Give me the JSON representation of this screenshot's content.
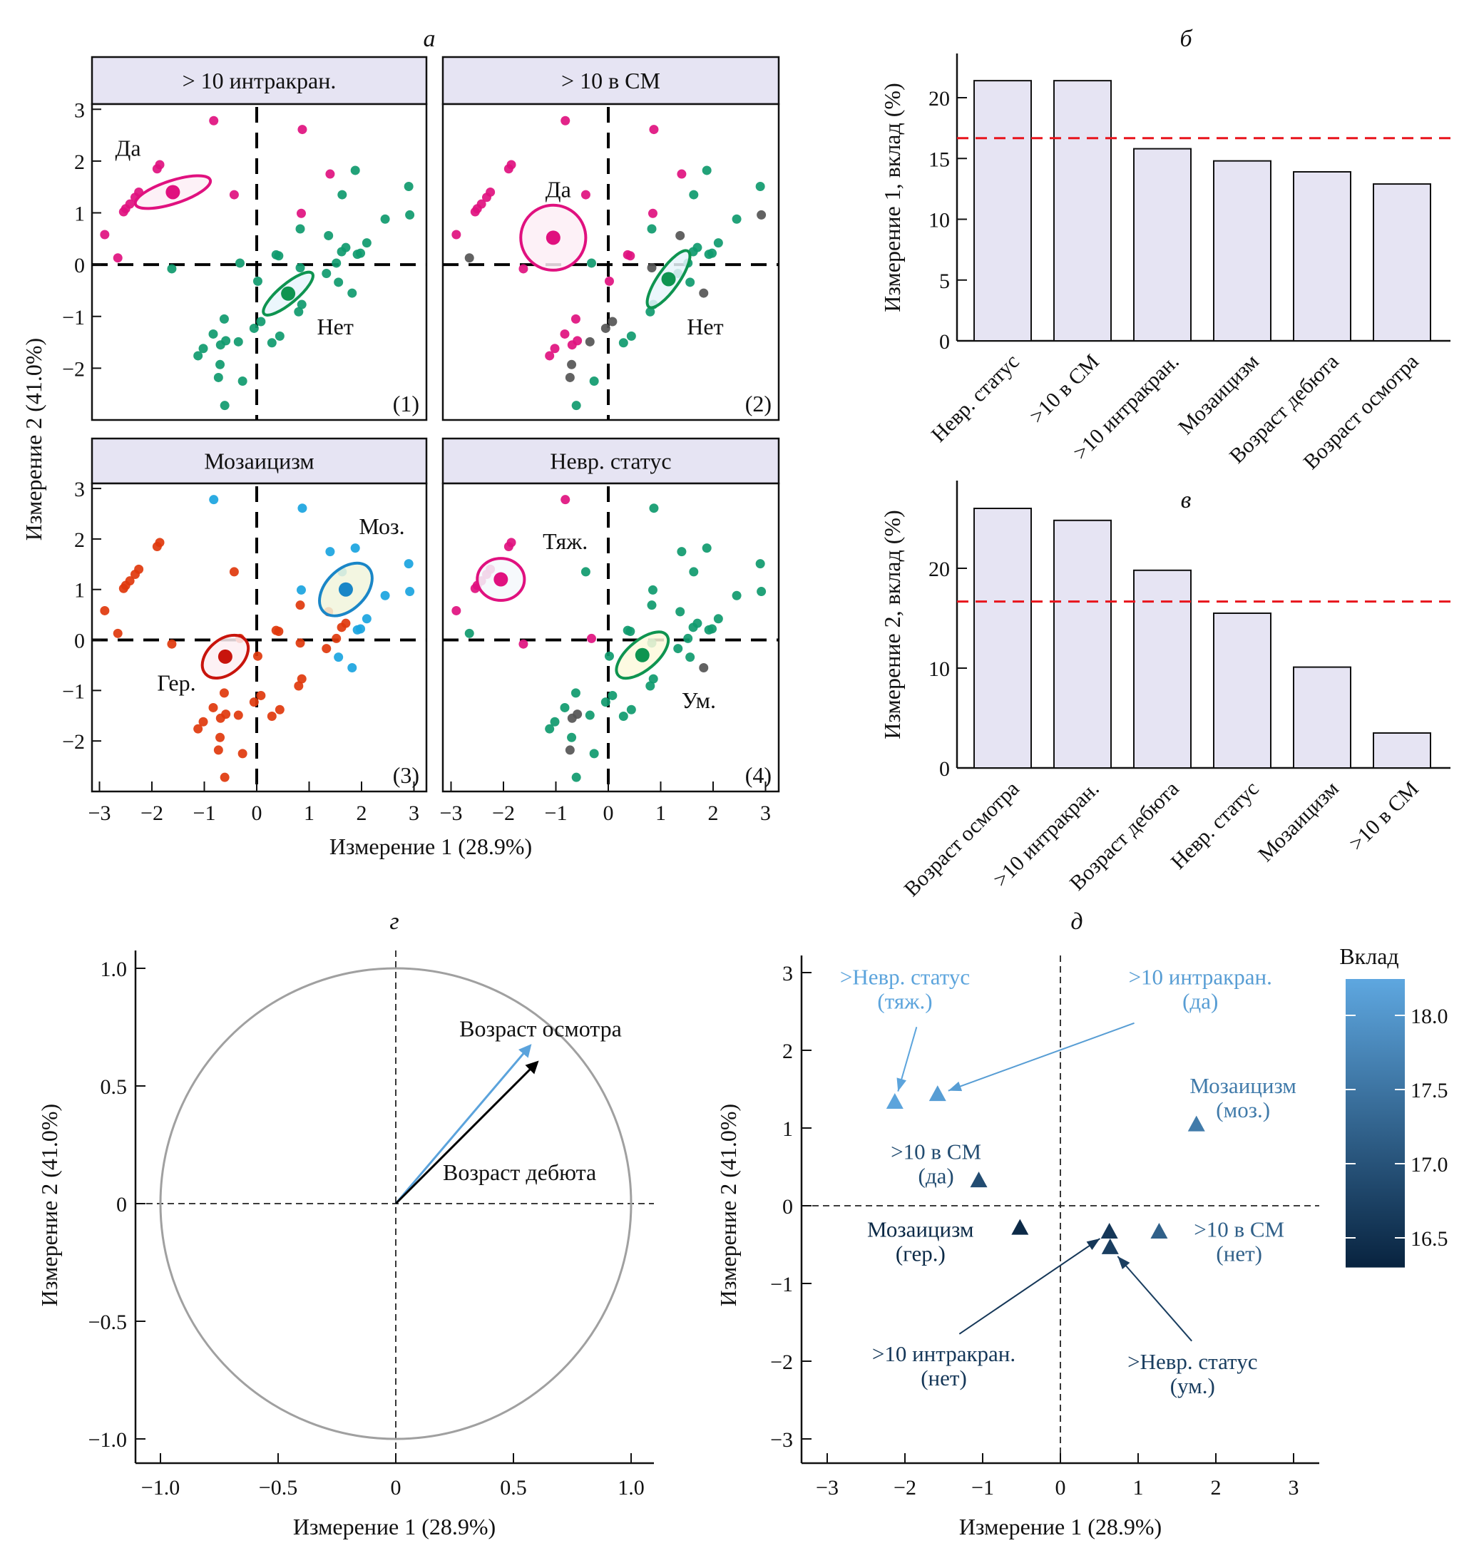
{
  "figure": {
    "panel_letters": {
      "a": "а",
      "b": "б",
      "v": "в",
      "g": "г",
      "d": "д"
    }
  },
  "chart_data": [
    {
      "id": "a",
      "type": "scatter",
      "title": "а",
      "xlabel": "Измерение 1 (28.9%)",
      "ylabel": "Измерение 2 (41.0%)",
      "xlim": [
        -3.2,
        3.2
      ],
      "ylim": [
        -3.0,
        3.1
      ],
      "xticks": [
        -3,
        -2,
        -1,
        0,
        1,
        2,
        3
      ],
      "yticks": [
        -2,
        -1,
        0,
        1,
        2,
        3
      ],
      "tick_labels_x": [
        "−3",
        "−2",
        "−1",
        "0",
        "1",
        "2",
        "3"
      ],
      "tick_labels_y": [
        "−2",
        "−1",
        "0",
        "1",
        "2",
        "3"
      ],
      "colors": {
        "da": "#e0117f",
        "net": "#0f9a6e",
        "na": "#555555",
        "moz": "#1aa4e0",
        "ger": "#e0380c",
        "tyazh": "#e0117f",
        "um": "#0f9a6e"
      },
      "facets": [
        {
          "title": "> 10 интракран.",
          "number": "(1)",
          "var": "k1",
          "groups": [
            {
              "key": "da",
              "label": "Да",
              "center": [
                -1.6,
                1.4
              ],
              "ellipse": {
                "rx": 0.75,
                "ry": 0.22,
                "angle": 18
              },
              "fill": "#fdeef6",
              "label_pos": [
                -2.7,
                2.1
              ]
            },
            {
              "key": "net",
              "label": "Нет",
              "center": [
                0.6,
                -0.56
              ],
              "ellipse": {
                "rx": 0.6,
                "ry": 0.18,
                "angle": 40
              },
              "fill": "#e8f4fb",
              "label_pos": [
                1.15,
                -1.35
              ]
            }
          ]
        },
        {
          "title": "> 10 в СМ",
          "number": "(2)",
          "var": "k2",
          "groups": [
            {
              "key": "da",
              "label": "Да",
              "center": [
                -1.05,
                0.52
              ],
              "ellipse": {
                "rx": 0.62,
                "ry": 0.62,
                "angle": 0
              },
              "fill": "#fdeef6",
              "label_pos": [
                -1.2,
                1.3
              ]
            },
            {
              "key": "net",
              "label": "Нет",
              "center": [
                1.15,
                -0.28
              ],
              "ellipse": {
                "rx": 0.65,
                "ry": 0.2,
                "angle": 55
              },
              "fill": "#e8f4fb",
              "label_pos": [
                1.5,
                -1.35
              ]
            }
          ]
        },
        {
          "title": "Мозаицизм",
          "number": "(3)",
          "var": "k3",
          "groups": [
            {
              "key": "moz",
              "label": "Моз.",
              "center": [
                1.7,
                1.0
              ],
              "ellipse": {
                "rx": 0.6,
                "ry": 0.38,
                "angle": 45
              },
              "fill": "#f1f5dc",
              "stroke": "#1a86c7",
              "label_pos": [
                1.95,
                2.1
              ]
            },
            {
              "key": "ger",
              "label": "Гер.",
              "center": [
                -0.6,
                -0.33
              ],
              "ellipse": {
                "rx": 0.5,
                "ry": 0.33,
                "angle": 40
              },
              "fill": "#fdeef2",
              "stroke": "#c8140c",
              "label_pos": [
                -1.9,
                -1.0
              ]
            }
          ]
        },
        {
          "title": "Невр. статус",
          "number": "(4)",
          "var": "k4",
          "groups": [
            {
              "key": "tyazh",
              "label": "Тяж.",
              "center": [
                -2.05,
                1.2
              ],
              "ellipse": {
                "rx": 0.45,
                "ry": 0.4,
                "angle": 0
              },
              "fill": "#f4f8fc",
              "label_pos": [
                -1.25,
                1.8
              ]
            },
            {
              "key": "um",
              "label": "Ум.",
              "center": [
                0.65,
                -0.3
              ],
              "ellipse": {
                "rx": 0.6,
                "ry": 0.28,
                "angle": 40
              },
              "fill": "#fdf9dc",
              "label_pos": [
                1.4,
                -1.35
              ]
            }
          ]
        }
      ],
      "points": [
        {
          "x": -0.82,
          "y": 2.78,
          "k1": "da",
          "k2": "da",
          "k3": "moz",
          "k4": "tyazh"
        },
        {
          "x": 0.87,
          "y": 2.61,
          "k1": "da",
          "k2": "da",
          "k3": "moz",
          "k4": "um"
        },
        {
          "x": -1.85,
          "y": 1.93,
          "k1": "da",
          "k2": "da",
          "k3": "ger",
          "k4": "tyazh"
        },
        {
          "x": -1.9,
          "y": 1.85,
          "k1": "da",
          "k2": "da",
          "k3": "ger",
          "k4": "tyazh"
        },
        {
          "x": -2.25,
          "y": 1.4,
          "k1": "da",
          "k2": "da",
          "k3": "ger",
          "k4": "tyazh"
        },
        {
          "x": -2.32,
          "y": 1.3,
          "k1": "da",
          "k2": "da",
          "k3": "ger",
          "k4": "tyazh"
        },
        {
          "x": -2.42,
          "y": 1.17,
          "k1": "da",
          "k2": "da",
          "k3": "ger",
          "k4": "tyazh"
        },
        {
          "x": -2.5,
          "y": 1.08,
          "k1": "da",
          "k2": "da",
          "k3": "ger",
          "k4": "tyazh"
        },
        {
          "x": -2.54,
          "y": 1.02,
          "k1": "da",
          "k2": "da",
          "k3": "ger",
          "k4": "tyazh"
        },
        {
          "x": -0.43,
          "y": 1.35,
          "k1": "da",
          "k2": "da",
          "k3": "ger",
          "k4": "um"
        },
        {
          "x": -2.9,
          "y": 0.58,
          "k1": "da",
          "k2": "da",
          "k3": "ger",
          "k4": "tyazh"
        },
        {
          "x": -2.65,
          "y": 0.13,
          "k1": "da",
          "k2": "na",
          "k3": "ger",
          "k4": "um"
        },
        {
          "x": 1.4,
          "y": 1.75,
          "k1": "da",
          "k2": "da",
          "k3": "moz",
          "k4": "um"
        },
        {
          "x": 0.85,
          "y": 0.99,
          "k1": "da",
          "k2": "da",
          "k3": "moz",
          "k4": "um"
        },
        {
          "x": 1.88,
          "y": 1.82,
          "k1": "net",
          "k2": "net",
          "k3": "moz",
          "k4": "um"
        },
        {
          "x": 2.9,
          "y": 1.51,
          "k1": "net",
          "k2": "net",
          "k3": "moz",
          "k4": "um"
        },
        {
          "x": 1.63,
          "y": 1.35,
          "k1": "net",
          "k2": "net",
          "k3": "moz",
          "k4": "um"
        },
        {
          "x": 2.45,
          "y": 0.88,
          "k1": "net",
          "k2": "net",
          "k3": "moz",
          "k4": "um"
        },
        {
          "x": 2.92,
          "y": 0.96,
          "k1": "net",
          "k2": "na",
          "k3": "moz",
          "k4": "um"
        },
        {
          "x": 0.83,
          "y": 0.69,
          "k1": "net",
          "k2": "net",
          "k3": "ger",
          "k4": "um"
        },
        {
          "x": 1.37,
          "y": 0.56,
          "k1": "net",
          "k2": "na",
          "k3": "ger",
          "k4": "um"
        },
        {
          "x": 1.62,
          "y": 0.25,
          "k1": "net",
          "k2": "net",
          "k3": "ger",
          "k4": "um"
        },
        {
          "x": 1.7,
          "y": 0.33,
          "k1": "net",
          "k2": "net",
          "k3": "ger",
          "k4": "um"
        },
        {
          "x": 2.1,
          "y": 0.42,
          "k1": "net",
          "k2": "net",
          "k3": "moz",
          "k4": "um"
        },
        {
          "x": 1.92,
          "y": 0.2,
          "k1": "net",
          "k2": "net",
          "k3": "moz",
          "k4": "um"
        },
        {
          "x": 1.98,
          "y": 0.22,
          "k1": "net",
          "k2": "net",
          "k3": "moz",
          "k4": "um"
        },
        {
          "x": 0.37,
          "y": 0.19,
          "k1": "net",
          "k2": "da",
          "k3": "ger",
          "k4": "um"
        },
        {
          "x": 0.42,
          "y": 0.17,
          "k1": "net",
          "k2": "da",
          "k3": "ger",
          "k4": "um"
        },
        {
          "x": -0.32,
          "y": 0.03,
          "k1": "net",
          "k2": "net",
          "k3": "ger",
          "k4": "tyazh"
        },
        {
          "x": -1.62,
          "y": -0.08,
          "k1": "net",
          "k2": "da",
          "k3": "ger",
          "k4": "tyazh"
        },
        {
          "x": 1.52,
          "y": 0.03,
          "k1": "net",
          "k2": "net",
          "k3": "ger",
          "k4": "um"
        },
        {
          "x": 0.83,
          "y": -0.06,
          "k1": "net",
          "k2": "na",
          "k3": "ger",
          "k4": "um"
        },
        {
          "x": 1.33,
          "y": -0.17,
          "k1": "net",
          "k2": "net",
          "k3": "ger",
          "k4": "um"
        },
        {
          "x": 1.56,
          "y": -0.34,
          "k1": "net",
          "k2": "net",
          "k3": "moz",
          "k4": "um"
        },
        {
          "x": 1.82,
          "y": -0.55,
          "k1": "net",
          "k2": "na",
          "k3": "moz",
          "k4": "na"
        },
        {
          "x": 0.02,
          "y": -0.32,
          "k1": "net",
          "k2": "da",
          "k3": "ger",
          "k4": "um"
        },
        {
          "x": 0.86,
          "y": -0.77,
          "k1": "net",
          "k2": "net",
          "k3": "ger",
          "k4": "um"
        },
        {
          "x": 0.8,
          "y": -0.91,
          "k1": "net",
          "k2": "net",
          "k3": "ger",
          "k4": "um"
        },
        {
          "x": -0.62,
          "y": -1.05,
          "k1": "net",
          "k2": "da",
          "k3": "ger",
          "k4": "um"
        },
        {
          "x": 0.08,
          "y": -1.1,
          "k1": "net",
          "k2": "na",
          "k3": "ger",
          "k4": "um"
        },
        {
          "x": -0.05,
          "y": -1.23,
          "k1": "net",
          "k2": "na",
          "k3": "ger",
          "k4": "um"
        },
        {
          "x": -0.83,
          "y": -1.34,
          "k1": "net",
          "k2": "da",
          "k3": "ger",
          "k4": "um"
        },
        {
          "x": -0.59,
          "y": -1.47,
          "k1": "net",
          "k2": "da",
          "k3": "ger",
          "k4": "na"
        },
        {
          "x": -0.69,
          "y": -1.55,
          "k1": "net",
          "k2": "da",
          "k3": "ger",
          "k4": "na"
        },
        {
          "x": -0.35,
          "y": -1.49,
          "k1": "net",
          "k2": "na",
          "k3": "ger",
          "k4": "um"
        },
        {
          "x": 0.29,
          "y": -1.51,
          "k1": "net",
          "k2": "net",
          "k3": "ger",
          "k4": "um"
        },
        {
          "x": 0.44,
          "y": -1.38,
          "k1": "net",
          "k2": "net",
          "k3": "ger",
          "k4": "um"
        },
        {
          "x": -1.02,
          "y": -1.62,
          "k1": "net",
          "k2": "da",
          "k3": "ger",
          "k4": "um"
        },
        {
          "x": -1.12,
          "y": -1.76,
          "k1": "net",
          "k2": "da",
          "k3": "ger",
          "k4": "um"
        },
        {
          "x": -0.7,
          "y": -1.93,
          "k1": "net",
          "k2": "na",
          "k3": "ger",
          "k4": "um"
        },
        {
          "x": -0.73,
          "y": -2.18,
          "k1": "net",
          "k2": "na",
          "k3": "ger",
          "k4": "na"
        },
        {
          "x": -0.27,
          "y": -2.25,
          "k1": "net",
          "k2": "net",
          "k3": "ger",
          "k4": "um"
        },
        {
          "x": -0.61,
          "y": -2.72,
          "k1": "net",
          "k2": "net",
          "k3": "ger",
          "k4": "um"
        }
      ]
    },
    {
      "id": "b",
      "type": "bar",
      "title": "б",
      "ylabel": "Измерение 1, вклад (%)",
      "categories": [
        "Невр. статус",
        ">10 в СМ",
        ">10 интракран.",
        "Мозаицизм",
        "Возраст дебюта",
        "Возраст осмотра"
      ],
      "values": [
        21.4,
        21.4,
        15.8,
        14.8,
        13.9,
        12.9
      ],
      "reference_line": 16.67,
      "ylim": [
        0,
        23.6
      ],
      "yticks": [
        0,
        5,
        10,
        15,
        20
      ],
      "bar_color": "#e6e4f3",
      "reference_color": "#e8141c"
    },
    {
      "id": "v",
      "type": "bar",
      "title": "в",
      "ylabel": "Измерение 2, вклад (%)",
      "categories": [
        "Возраст осмотра",
        ">10 интракран.",
        "Возраст дебюта",
        "Невр. статус",
        "Мозаицизм",
        ">10 в СМ"
      ],
      "values": [
        26.0,
        24.8,
        19.8,
        15.5,
        10.1,
        3.5
      ],
      "reference_line": 16.67,
      "ylim": [
        0,
        28.8
      ],
      "yticks": [
        0,
        10,
        20
      ],
      "bar_color": "#e6e4f3",
      "reference_color": "#e8141c"
    },
    {
      "id": "g",
      "type": "line",
      "title": "г",
      "subtype": "correlation circle",
      "xlabel": "Измерение 1 (28.9%)",
      "ylabel": "Измерение 2 (41.0%)",
      "xlim": [
        -1.1,
        1.1
      ],
      "ylim": [
        -1.1,
        1.1
      ],
      "xticks": [
        -1.0,
        -0.5,
        0,
        0.5,
        1.0
      ],
      "yticks": [
        -1.0,
        -0.5,
        0,
        0.5,
        1.0
      ],
      "tick_labels_x": [
        "−1.0",
        "−0.5",
        "0",
        "0.5",
        "1.0"
      ],
      "tick_labels_y": [
        "−1.0",
        "−0.5",
        "0",
        "0.5",
        "1.0"
      ],
      "circle_radius": 1.0,
      "vectors": [
        {
          "label": "Возраст осмотра",
          "x": 0.57,
          "y": 0.67,
          "color": "#5ba3dc",
          "label_pos": [
            0.27,
            0.71
          ]
        },
        {
          "label": "Возраст дебюта",
          "x": 0.6,
          "y": 0.6,
          "color": "#000000",
          "label_pos": [
            0.2,
            0.1
          ]
        }
      ]
    },
    {
      "id": "d",
      "type": "scatter",
      "title": "д",
      "xlabel": "Измерение 1 (28.9%)",
      "ylabel": "Измерение 2 (41.0%)",
      "xlim": [
        -3.3,
        3.3
      ],
      "ylim": [
        -3.3,
        3.3
      ],
      "xticks": [
        -3,
        -2,
        -1,
        0,
        1,
        2,
        3
      ],
      "yticks": [
        -3,
        -2,
        -1,
        0,
        1,
        2,
        3
      ],
      "tick_labels_x": [
        "−3",
        "−2",
        "−1",
        "0",
        "1",
        "2",
        "3"
      ],
      "tick_labels_y": [
        "−3",
        "−2",
        "−1",
        "0",
        "1",
        "2",
        "3"
      ],
      "colorbar": {
        "title": "Вклад",
        "min": 16.3,
        "max": 18.25,
        "ticks": [
          16.5,
          17.0,
          17.5,
          18.0
        ],
        "tick_labels": [
          "16.5",
          "17.0",
          "17.5",
          "18.0"
        ],
        "color_low": "#08233f",
        "color_high": "#5ea7e0"
      },
      "points": [
        {
          "label1": ">Невр. статус",
          "label2": "(тяж.)",
          "x": -2.13,
          "y": 1.33,
          "value": 18.2,
          "label_pos": [
            -2.0,
            2.85
          ],
          "arrow_from": [
            -1.85,
            2.3
          ]
        },
        {
          "label1": ">10 интракран.",
          "label2": "(да)",
          "x": -1.58,
          "y": 1.43,
          "value": 18.1,
          "label_pos": [
            1.8,
            2.85
          ],
          "arrow_from": [
            0.95,
            2.35
          ]
        },
        {
          "label1": "Мозаицизм",
          "label2": "(моз.)",
          "x": 1.75,
          "y": 1.04,
          "value": 17.6,
          "label_pos": [
            2.35,
            1.45
          ],
          "arrow_from": null
        },
        {
          "label1": ">10 в СМ",
          "label2": "(да)",
          "x": -1.05,
          "y": 0.32,
          "value": 16.9,
          "label_pos": [
            -1.6,
            0.6
          ],
          "arrow_from": null
        },
        {
          "label1": "Мозаицизм",
          "label2": "(гер.)",
          "x": -0.52,
          "y": -0.29,
          "value": 16.4,
          "label_pos": [
            -1.8,
            -0.4
          ],
          "arrow_from": null
        },
        {
          "label1": ">10 интракран.",
          "label2": "(нет)",
          "x": 0.63,
          "y": -0.34,
          "value": 16.6,
          "label_pos": [
            -1.5,
            -2.0
          ],
          "arrow_from": [
            -1.3,
            -1.65
          ]
        },
        {
          "label1": ">Невр. статус",
          "label2": "(ум.)",
          "x": 0.64,
          "y": -0.54,
          "value": 16.7,
          "label_pos": [
            1.7,
            -2.1
          ],
          "arrow_from": [
            1.69,
            -1.74
          ]
        },
        {
          "label1": ">10 в СМ",
          "label2": "(нет)",
          "x": 1.27,
          "y": -0.34,
          "value": 17.2,
          "label_pos": [
            2.3,
            -0.4
          ],
          "arrow_from": null
        }
      ]
    }
  ]
}
